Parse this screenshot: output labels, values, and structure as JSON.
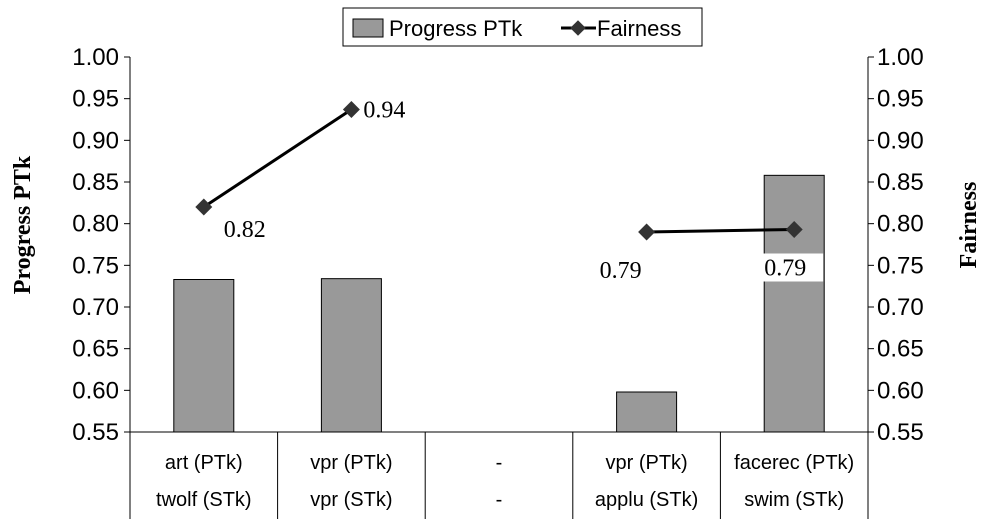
{
  "chart_data": {
    "type": "bar",
    "categories": [
      [
        "art (PTk)",
        "twolf (STk)"
      ],
      [
        "vpr (PTk)",
        "vpr (STk)"
      ],
      [
        "-",
        "-"
      ],
      [
        "vpr (PTk)",
        "applu (STk)"
      ],
      [
        "facerec (PTk)",
        "swim (STk)"
      ]
    ],
    "series": [
      {
        "name": "Progress PTk",
        "type": "bar",
        "axis": "left",
        "color": "#999999",
        "values": [
          0.733,
          0.734,
          null,
          0.598,
          0.858
        ]
      },
      {
        "name": "Fairness",
        "type": "line",
        "axis": "right",
        "color": "#000000",
        "values": [
          0.82,
          0.937,
          null,
          0.79,
          0.793
        ],
        "segments": [
          [
            0,
            1
          ],
          [
            3,
            4
          ]
        ]
      }
    ],
    "data_labels": [
      "0.82",
      "0.94",
      "0.79",
      "0.79"
    ],
    "ylabel": "Progress PTk",
    "y2label": "Fairness",
    "ylim": [
      0.55,
      1.0
    ],
    "y2lim": [
      0.55,
      1.0
    ],
    "yticks": [
      "0.55",
      "0.60",
      "0.65",
      "0.70",
      "0.75",
      "0.80",
      "0.85",
      "0.90",
      "0.95",
      "1.00"
    ],
    "yticks_right": [
      "0.55",
      "0.60",
      "0.65",
      "0.70",
      "0.75",
      "0.80",
      "0.85",
      "0.90",
      "0.95",
      "1.00"
    ],
    "legend_position": "top",
    "grid": false
  }
}
